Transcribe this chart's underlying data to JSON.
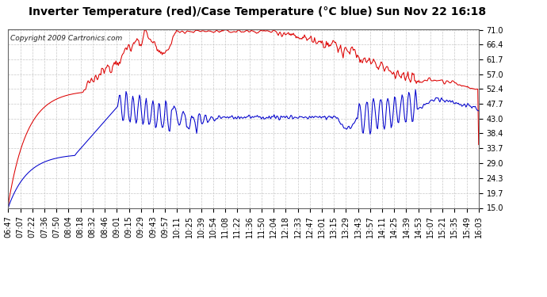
{
  "title": "Inverter Temperature (red)/Case Temperature (°C blue) Sun Nov 22 16:18",
  "copyright": "Copyright 2009 Cartronics.com",
  "yticks": [
    15.0,
    19.7,
    24.3,
    29.0,
    33.7,
    38.4,
    43.0,
    47.7,
    52.4,
    57.0,
    61.7,
    66.4,
    71.0
  ],
  "ymin": 15.0,
  "ymax": 71.0,
  "bg_color": "#ffffff",
  "plot_bg_color": "#ffffff",
  "grid_color": "#c8c8c8",
  "red_color": "#dd0000",
  "blue_color": "#0000cc",
  "title_fontsize": 10,
  "copyright_fontsize": 6.5,
  "tick_fontsize": 7,
  "n_points": 560
}
